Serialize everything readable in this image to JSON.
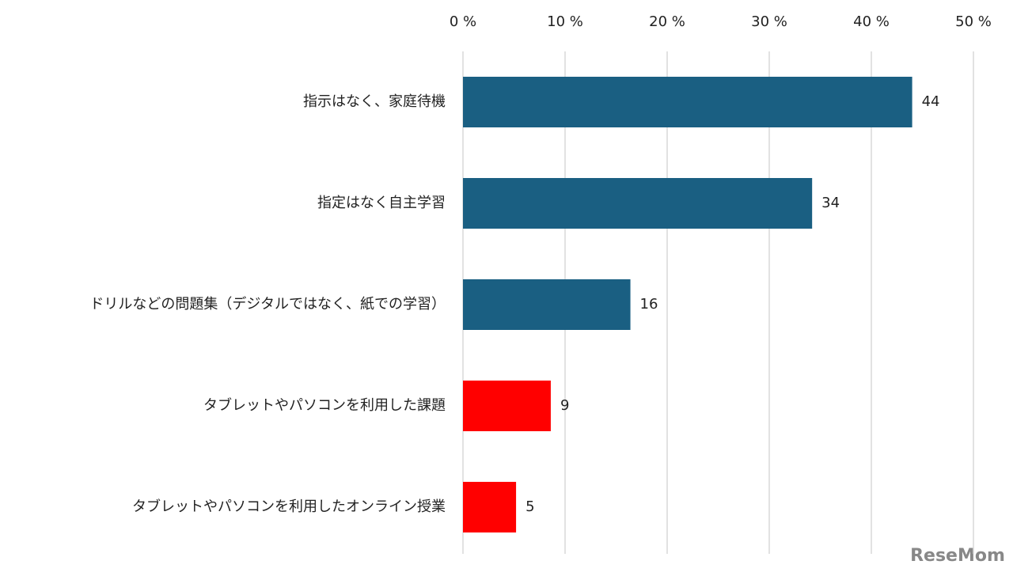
{
  "chart_data": {
    "type": "bar",
    "orientation": "horizontal",
    "categories": [
      "指示はなく、家庭待機",
      "指定はなく自主学習",
      "ドリルなどの問題集（デジタルではなく、紙での学習）",
      "タブレットやパソコンを利用した課題",
      "タブレットやパソコンを利用したオンライン授業"
    ],
    "values": [
      44,
      34.2,
      16.4,
      8.6,
      5.2
    ],
    "value_labels": [
      "44",
      "34",
      "16",
      "9",
      "5"
    ],
    "colors": [
      "#1a5f82",
      "#1a5f82",
      "#1a5f82",
      "#ff0000",
      "#ff0000"
    ],
    "xlim": [
      0,
      50
    ],
    "xticks": [
      {
        "value": 0,
        "label": "0 %"
      },
      {
        "value": 10,
        "label": "10 %"
      },
      {
        "value": 20,
        "label": "20 %"
      },
      {
        "value": 30,
        "label": "30 %"
      },
      {
        "value": 40,
        "label": "40 %"
      },
      {
        "value": 50,
        "label": "50 %"
      }
    ],
    "grid": true,
    "watermark": "ReseMom"
  }
}
